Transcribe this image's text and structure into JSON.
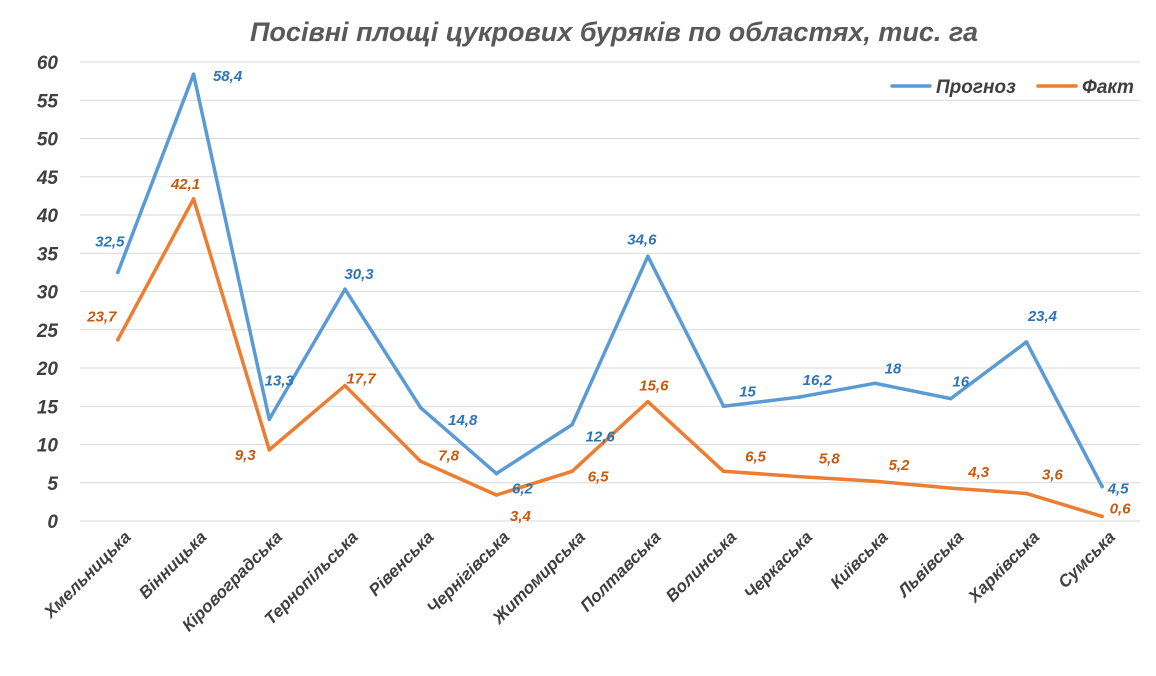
{
  "chart_data": {
    "type": "line",
    "title": "Посівні площі цукрових буряків по областях, тис. га",
    "categories": [
      "Хмельницька",
      "Вінницька",
      "Кіровоградська",
      "Тернопільська",
      "Рівенська",
      "Чернігівська",
      "Житомирська",
      "Полтавська",
      "Волинська",
      "Черкаська",
      "Київська",
      "Львівська",
      "Харківська",
      "Сумська"
    ],
    "series": [
      {
        "name": "Прогноз",
        "color": "#5b9bd5",
        "label_color": "#2e75b6",
        "values": [
          32.5,
          58.4,
          13.3,
          30.3,
          14.8,
          6.2,
          12.6,
          34.6,
          15,
          16.2,
          18,
          16,
          23.4,
          4.5
        ],
        "labels": [
          "32,5",
          "58,4",
          "13,3",
          "30,3",
          "14,8",
          "6,2",
          "12,6",
          "34,6",
          "15",
          "16,2",
          "18",
          "16",
          "23,4",
          "4,5"
        ]
      },
      {
        "name": "Факт",
        "color": "#ed7d31",
        "label_color": "#c55a11",
        "values": [
          23.7,
          42.1,
          9.3,
          17.7,
          7.8,
          3.4,
          6.5,
          15.6,
          6.5,
          5.8,
          5.2,
          4.3,
          3.6,
          0.6
        ],
        "labels": [
          "23,7",
          "42,1",
          "9,3",
          "17,7",
          "7,8",
          "3,4",
          "6,5",
          "15,6",
          "6,5",
          "5,8",
          "5,2",
          "4,3",
          "3,6",
          "0,6"
        ]
      }
    ],
    "xlabel": "",
    "ylabel": "",
    "ylim": [
      0,
      60
    ],
    "yticks": [
      0,
      5,
      10,
      15,
      20,
      25,
      30,
      35,
      40,
      45,
      50,
      55,
      60
    ],
    "grid": true,
    "legend": "top-right"
  }
}
